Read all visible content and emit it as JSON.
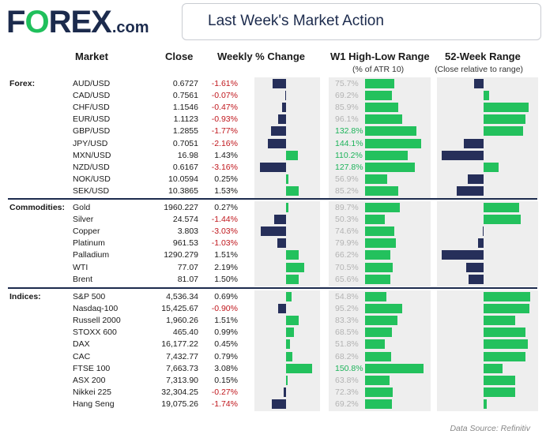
{
  "header": {
    "logo_main": "F",
    "logo_o": "O",
    "logo_rest": "REX",
    "logo_suffix": ".com",
    "title": "Last Week's Market Action"
  },
  "columns": {
    "market": "Market",
    "close": "Close",
    "weekly": "Weekly % Change",
    "range": "W1 High-Low Range",
    "range_sub": "(% of ATR 10)",
    "w52": "52-Week Range",
    "w52_sub": "(Close relative to range)"
  },
  "footer": {
    "source": "Data Source: Refinitiv"
  },
  "colors": {
    "navy": "#262f5a",
    "green": "#23c15d",
    "negative": "#c0171d",
    "highlight": "#1db35a"
  },
  "chart_data": {
    "type": "table",
    "groups": [
      {
        "label": "Forex:",
        "rows": [
          {
            "market": "AUD/USD",
            "close": "0.6727",
            "change_label": "-1.61%",
            "change": -1.61,
            "range_label": "75.7%",
            "range": 75.7,
            "w52": -0.2
          },
          {
            "market": "CAD/USD",
            "close": "0.7561",
            "change_label": "-0.07%",
            "change": -0.07,
            "range_label": "69.2%",
            "range": 69.2,
            "w52": 0.12
          },
          {
            "market": "CHF/USD",
            "close": "1.1546",
            "change_label": "-0.47%",
            "change": -0.47,
            "range_label": "85.9%",
            "range": 85.9,
            "w52": 0.92
          },
          {
            "market": "EUR/USD",
            "close": "1.1123",
            "change_label": "-0.93%",
            "change": -0.93,
            "range_label": "96.1%",
            "range": 96.1,
            "w52": 0.85
          },
          {
            "market": "GBP/USD",
            "close": "1.2855",
            "change_label": "-1.77%",
            "change": -1.77,
            "range_label": "132.8%",
            "range": 132.8,
            "w52": 0.8
          },
          {
            "market": "JPY/USD",
            "close": "0.7051",
            "change_label": "-2.16%",
            "change": -2.16,
            "range_label": "144.1%",
            "range": 144.1,
            "w52": -0.4
          },
          {
            "market": "MXN/USD",
            "close": "16.98",
            "change_label": "1.43%",
            "change": 1.43,
            "range_label": "110.2%",
            "range": 110.2,
            "w52": -0.85
          },
          {
            "market": "NZD/USD",
            "close": "0.6167",
            "change_label": "-3.16%",
            "change": -3.16,
            "range_label": "127.8%",
            "range": 127.8,
            "w52": 0.3
          },
          {
            "market": "NOK/USD",
            "close": "10.0594",
            "change_label": "0.25%",
            "change": 0.25,
            "range_label": "56.9%",
            "range": 56.9,
            "w52": -0.32
          },
          {
            "market": "SEK/USD",
            "close": "10.3865",
            "change_label": "1.53%",
            "change": 1.53,
            "range_label": "85.2%",
            "range": 85.2,
            "w52": -0.55
          }
        ]
      },
      {
        "label": "Commodities:",
        "rows": [
          {
            "market": "Gold",
            "close": "1960.227",
            "change_label": "0.27%",
            "change": 0.27,
            "range_label": "89.7%",
            "range": 89.7,
            "w52": 0.72
          },
          {
            "market": "Silver",
            "close": "24.574",
            "change_label": "-1.44%",
            "change": -1.44,
            "range_label": "50.3%",
            "range": 50.3,
            "w52": 0.75
          },
          {
            "market": "Copper",
            "close": "3.803",
            "change_label": "-3.03%",
            "change": -3.03,
            "range_label": "74.6%",
            "range": 74.6,
            "w52": -0.02
          },
          {
            "market": "Platinum",
            "close": "961.53",
            "change_label": "-1.03%",
            "change": -1.03,
            "range_label": "79.9%",
            "range": 79.9,
            "w52": -0.12
          },
          {
            "market": "Palladium",
            "close": "1290.279",
            "change_label": "1.51%",
            "change": 1.51,
            "range_label": "66.2%",
            "range": 66.2,
            "w52": -0.85
          },
          {
            "market": "WTI",
            "close": "77.07",
            "change_label": "2.19%",
            "change": 2.19,
            "range_label": "70.5%",
            "range": 70.5,
            "w52": -0.35
          },
          {
            "market": "Brent",
            "close": "81.07",
            "change_label": "1.50%",
            "change": 1.5,
            "range_label": "65.6%",
            "range": 65.6,
            "w52": -0.3
          }
        ]
      },
      {
        "label": "Indices:",
        "rows": [
          {
            "market": "S&P 500",
            "close": "4,536.34",
            "change_label": "0.69%",
            "change": 0.69,
            "range_label": "54.8%",
            "range": 54.8,
            "w52": 0.95
          },
          {
            "market": "Nasdaq-100",
            "close": "15,425.67",
            "change_label": "-0.90%",
            "change": -0.9,
            "range_label": "95.2%",
            "range": 95.2,
            "w52": 0.93
          },
          {
            "market": "Russell 2000",
            "close": "1,960.26",
            "change_label": "1.51%",
            "change": 1.51,
            "range_label": "83.3%",
            "range": 83.3,
            "w52": 0.65
          },
          {
            "market": "STOXX 600",
            "close": "465.40",
            "change_label": "0.99%",
            "change": 0.99,
            "range_label": "68.5%",
            "range": 68.5,
            "w52": 0.85
          },
          {
            "market": "DAX",
            "close": "16,177.22",
            "change_label": "0.45%",
            "change": 0.45,
            "range_label": "51.8%",
            "range": 51.8,
            "w52": 0.9
          },
          {
            "market": "CAC",
            "close": "7,432.77",
            "change_label": "0.79%",
            "change": 0.79,
            "range_label": "68.2%",
            "range": 68.2,
            "w52": 0.85
          },
          {
            "market": "FTSE 100",
            "close": "7,663.73",
            "change_label": "3.08%",
            "change": 3.08,
            "range_label": "150.8%",
            "range": 150.8,
            "w52": 0.38
          },
          {
            "market": "ASX 200",
            "close": "7,313.90",
            "change_label": "0.15%",
            "change": 0.15,
            "range_label": "63.8%",
            "range": 63.8,
            "w52": 0.65
          },
          {
            "market": "Nikkei 225",
            "close": "32,304.25",
            "change_label": "-0.27%",
            "change": -0.27,
            "range_label": "72.3%",
            "range": 72.3,
            "w52": 0.65
          },
          {
            "market": "Hang Seng",
            "close": "19,075.26",
            "change_label": "-1.74%",
            "change": -1.74,
            "range_label": "69.2%",
            "range": 69.2,
            "w52": 0.07
          }
        ]
      }
    ],
    "range_highlight_threshold": 100
  }
}
